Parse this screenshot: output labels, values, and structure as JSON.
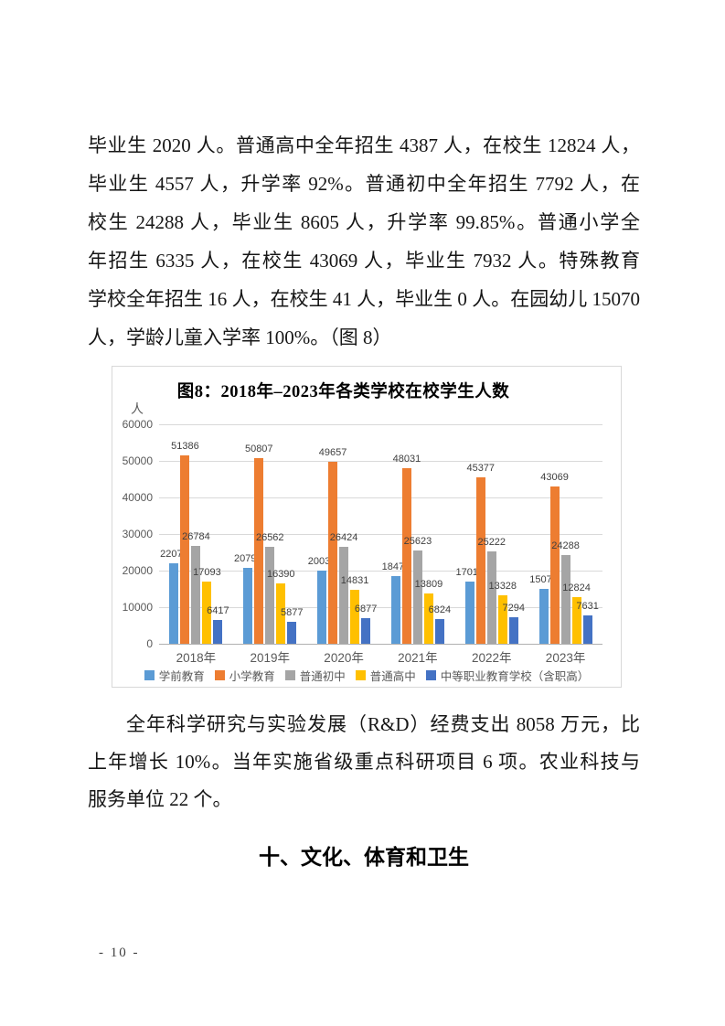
{
  "document": {
    "page_number": "- 10 -",
    "section_heading": "十、文化、体育和卫生",
    "paragraph_top": {
      "lines": [
        "毕业生 2020 人。普通高中全年招生 4387 人，在校生 12824 人，",
        "毕业生 4557 人，升学率 92%。普通初中全年招生 7792 人，在",
        "校生 24288 人，毕业生 8605 人，升学率 99.85%。普通小学全",
        "年招生 6335 人，在校生 43069 人，毕业生 7932 人。特殊教育",
        "学校全年招生 16 人，在校生 41 人，毕业生 0 人。在园幼儿 15070",
        "人，学龄儿童入学率 100%。（图 8）"
      ]
    },
    "paragraph_bottom": {
      "lines": [
        "全年科学研究与实验发展（R&D）经费支出 8058 万元，比",
        "上年增长 10%。当年实施省级重点科研项目 6 项。农业科技与",
        "服务单位 22 个。"
      ]
    }
  },
  "chart_data": {
    "type": "bar",
    "title": "图8：2018年–2023年各类学校在校学生人数",
    "y_unit": "人",
    "xlabel": "",
    "ylabel": "人",
    "categories": [
      "2018年",
      "2019年",
      "2020年",
      "2021年",
      "2022年",
      "2023年"
    ],
    "series": [
      {
        "name": "学前教育",
        "color": "#5B9BD5",
        "values": [
          22075,
          20795,
          20032,
          18475,
          17017,
          15070
        ]
      },
      {
        "name": "小学教育",
        "color": "#ED7D31",
        "values": [
          51386,
          50807,
          49657,
          48031,
          45377,
          43069
        ]
      },
      {
        "name": "普通初中",
        "color": "#A5A5A5",
        "values": [
          26784,
          26562,
          26424,
          25623,
          25222,
          24288
        ]
      },
      {
        "name": "普通高中",
        "color": "#FFC000",
        "values": [
          17093,
          16390,
          14831,
          13809,
          13328,
          12824
        ]
      },
      {
        "name": "中等职业教育学校（含职高）",
        "color": "#4472C4",
        "values": [
          6417,
          5877,
          6877,
          6824,
          7294,
          7631
        ]
      }
    ],
    "ylim": [
      0,
      60000
    ],
    "yticks": [
      0,
      10000,
      20000,
      30000,
      40000,
      50000,
      60000
    ],
    "grid": true,
    "legend_position": "bottom",
    "data_labels": true
  }
}
